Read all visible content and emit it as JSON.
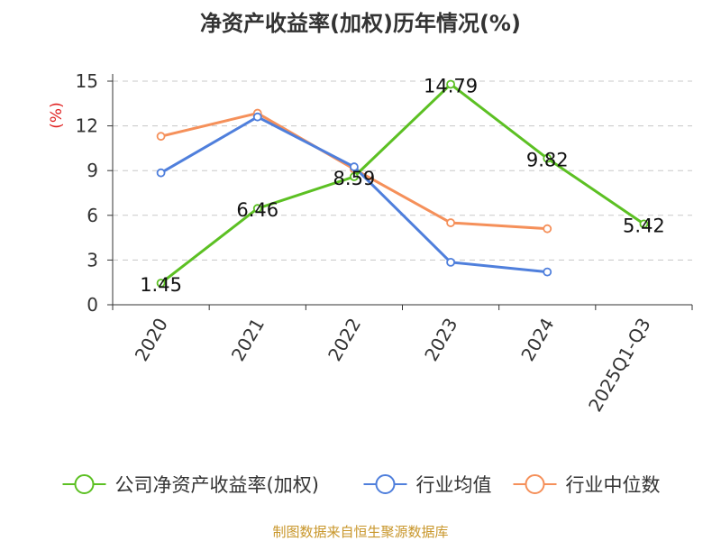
{
  "chart_data": {
    "type": "line",
    "title": "净资产收益率(加权)历年情况(%)",
    "ylabel": "(%)",
    "xlabel": "",
    "categories": [
      "2020",
      "2021",
      "2022",
      "2023",
      "2024",
      "2025Q1-Q3"
    ],
    "yticks": [
      0,
      3,
      6,
      9,
      12,
      15
    ],
    "ylim": [
      0,
      15
    ],
    "grid": true,
    "legend_position": "bottom",
    "series": [
      {
        "name": "公司净资产收益率(加权)",
        "color": "#5cc023",
        "values": [
          1.45,
          6.46,
          8.59,
          14.79,
          9.82,
          5.42
        ],
        "labels": [
          "1.45",
          "6.46",
          "8.59",
          "14.79",
          "9.82",
          "5.42"
        ],
        "show_labels": true
      },
      {
        "name": "行业均值",
        "color": "#4f7fdc",
        "values": [
          8.85,
          12.6,
          9.25,
          2.85,
          2.2,
          null
        ],
        "show_labels": false
      },
      {
        "name": "行业中位数",
        "color": "#f5905a",
        "values": [
          11.3,
          12.85,
          9.1,
          5.5,
          5.1,
          null
        ],
        "show_labels": false
      }
    ],
    "unit_color": "#e02020"
  },
  "source": {
    "text": "制图数据来自恒生聚源数据库",
    "color": "#c8962a"
  }
}
